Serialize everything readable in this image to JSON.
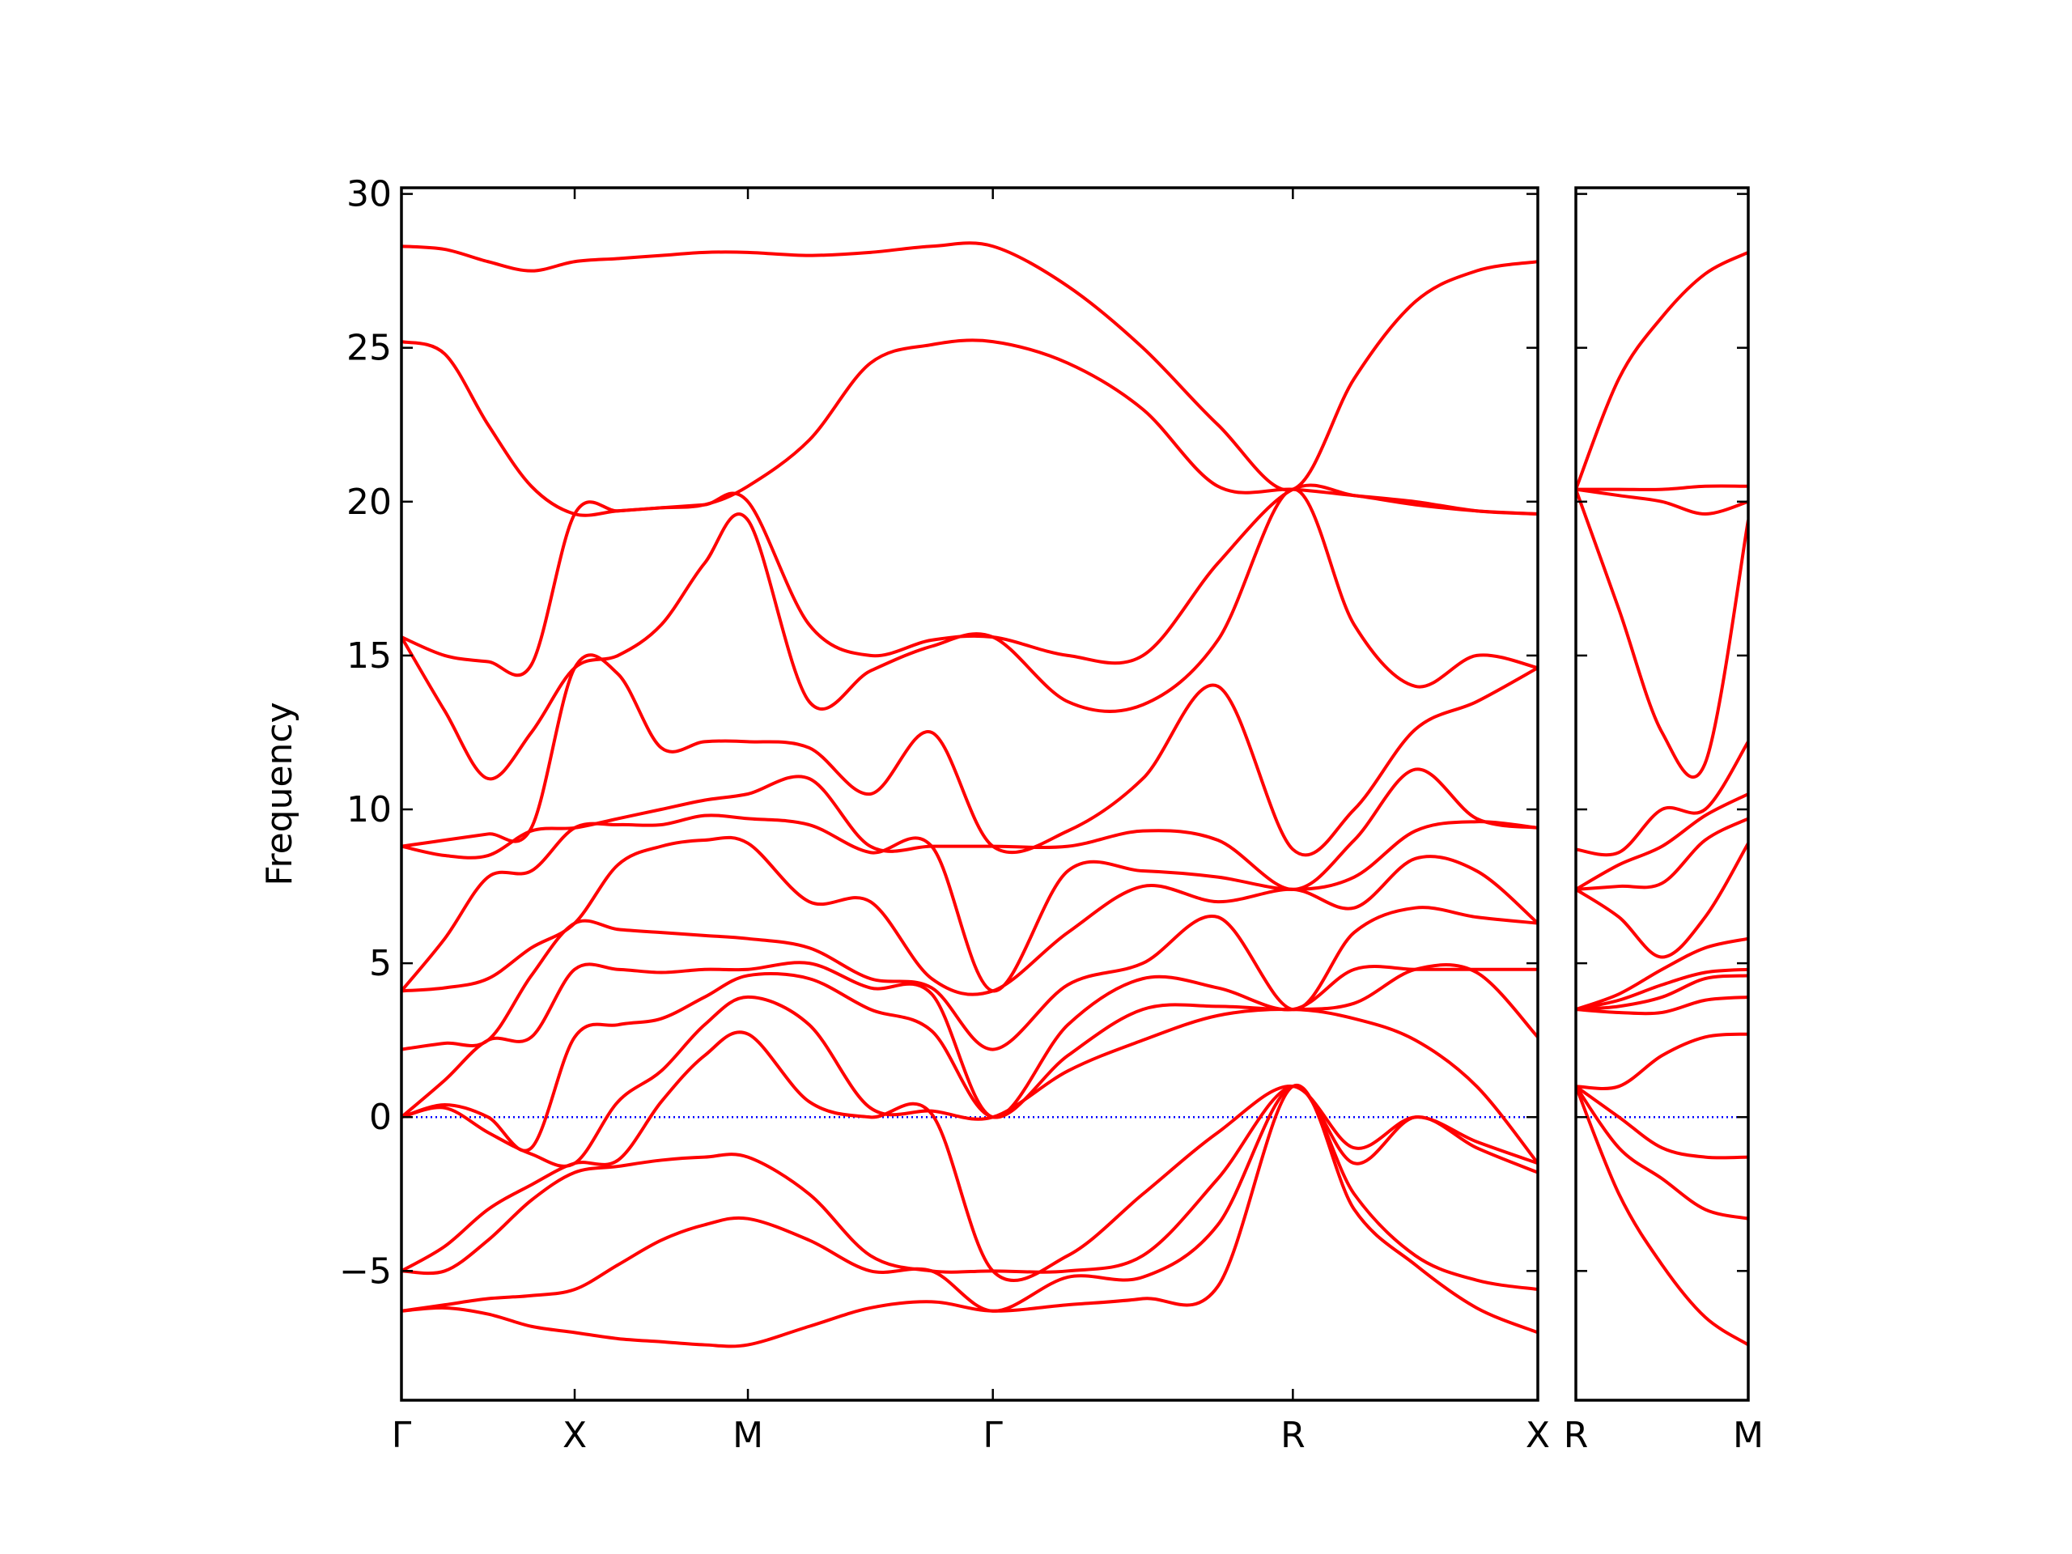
{
  "chart_data": [
    {
      "type": "line",
      "ylabel": "Frequency",
      "color": "#ff0000",
      "zero_line_color": "#0000ff",
      "tick_direction": "in",
      "x": [
        0,
        0.25,
        0.5,
        0.75,
        1,
        1.25,
        1.5,
        1.75,
        2,
        2.354,
        2.707,
        3.061,
        3.414,
        3.847,
        4.28,
        4.713,
        5.146,
        5.5,
        5.853,
        6.207,
        6.56
      ],
      "xlim": [
        0,
        6.56
      ],
      "xticks": [
        {
          "value": 0,
          "label": "Γ"
        },
        {
          "value": 1,
          "label": "X"
        },
        {
          "value": 2,
          "label": "M"
        },
        {
          "value": 3.414,
          "label": "Γ"
        },
        {
          "value": 5.146,
          "label": "R"
        },
        {
          "value": 6.56,
          "label": "X"
        }
      ],
      "ylim": [
        -9.2,
        30.2
      ],
      "yticks": [
        {
          "value": -5,
          "label": "−5"
        },
        0,
        5,
        10,
        15,
        20,
        25,
        30
      ],
      "ytick_labels": true,
      "series": [
        {
          "values": [
            -6.3,
            -6.2,
            -6.4,
            -6.8,
            -7.0,
            -7.2,
            -7.3,
            -7.4,
            -7.4,
            -6.8,
            -6.2,
            -6.0,
            -6.3,
            -6.1,
            -5.9,
            -5.5,
            1.0,
            -3.0,
            -4.8,
            -6.2,
            -7.0
          ]
        },
        {
          "values": [
            -6.3,
            -6.1,
            -5.9,
            -5.8,
            -5.6,
            -4.8,
            -4.0,
            -3.5,
            -3.3,
            -4.0,
            -5.0,
            -5.0,
            -6.3,
            -5.2,
            -5.2,
            -3.5,
            1.0,
            -2.5,
            -4.5,
            -5.3,
            -5.6
          ]
        },
        {
          "values": [
            -5.0,
            -5.0,
            -4.0,
            -2.7,
            -1.8,
            -1.6,
            -1.4,
            -1.3,
            -1.3,
            -2.5,
            -4.5,
            -5.0,
            -5.0,
            -5.0,
            -4.5,
            -2.0,
            1.0,
            -1.5,
            0.0,
            -1.0,
            -1.8
          ]
        },
        {
          "values": [
            -5.0,
            -4.2,
            -3.0,
            -2.2,
            -1.5,
            -1.4,
            0.5,
            2.0,
            2.7,
            0.5,
            0.0,
            0.1,
            -5.0,
            -4.5,
            -2.5,
            -0.5,
            1.0,
            -1.0,
            0.0,
            -0.8,
            -1.5
          ]
        },
        {
          "values": [
            0,
            0.3,
            -0.5,
            -1.2,
            -1.5,
            0.5,
            1.5,
            3.0,
            3.9,
            3.0,
            0.3,
            0.2,
            0,
            1.5,
            2.5,
            3.3,
            3.5,
            3.2,
            2.5,
            1.0,
            -1.5
          ]
        },
        {
          "values": [
            0,
            0.4,
            0.0,
            -1.0,
            2.6,
            3.0,
            3.2,
            3.9,
            4.6,
            4.5,
            3.5,
            2.8,
            0,
            2.0,
            3.5,
            3.6,
            3.5,
            3.7,
            4.8,
            4.7,
            2.6
          ]
        },
        {
          "values": [
            0,
            1.2,
            2.5,
            2.6,
            4.8,
            4.8,
            4.7,
            4.8,
            4.8,
            5.0,
            4.2,
            4.0,
            0,
            3.0,
            4.5,
            4.2,
            3.5,
            4.8,
            4.8,
            4.8,
            4.8
          ]
        },
        {
          "values": [
            2.2,
            2.4,
            2.5,
            4.6,
            6.3,
            6.1,
            6.0,
            5.9,
            5.8,
            5.5,
            4.5,
            4.2,
            2.2,
            4.3,
            5.0,
            6.5,
            3.5,
            6.0,
            6.8,
            6.5,
            6.3
          ]
        },
        {
          "values": [
            4.1,
            4.2,
            4.5,
            5.5,
            6.3,
            8.2,
            8.8,
            9.0,
            8.9,
            7.0,
            7.0,
            4.5,
            4.1,
            6.0,
            7.5,
            7.0,
            7.4,
            6.8,
            8.4,
            8.0,
            6.3
          ]
        },
        {
          "values": [
            4.1,
            5.8,
            7.8,
            8.0,
            9.4,
            9.5,
            9.5,
            9.8,
            9.7,
            9.5,
            8.6,
            8.8,
            4.1,
            8.0,
            8.0,
            7.8,
            7.4,
            7.8,
            9.3,
            9.6,
            9.4
          ]
        },
        {
          "values": [
            8.8,
            8.5,
            8.5,
            9.3,
            9.4,
            9.7,
            10.0,
            10.3,
            10.5,
            11.0,
            8.8,
            8.8,
            8.8,
            8.8,
            9.3,
            9.0,
            7.4,
            9.0,
            11.3,
            9.7,
            9.4
          ]
        },
        {
          "values": [
            8.8,
            9.0,
            9.2,
            9.4,
            14.6,
            14.4,
            12.0,
            12.2,
            12.2,
            12.0,
            10.5,
            12.5,
            8.8,
            9.3,
            11.0,
            14.0,
            8.7,
            10.0,
            12.6,
            13.5,
            14.6
          ]
        },
        {
          "values": [
            15.6,
            13.2,
            11.0,
            12.5,
            14.6,
            15.0,
            16.0,
            18.0,
            19.4,
            13.5,
            14.5,
            15.3,
            15.6,
            13.5,
            13.4,
            15.5,
            20.4,
            16.0,
            14.0,
            15.0,
            14.6
          ]
        },
        {
          "values": [
            15.6,
            15.0,
            14.8,
            14.7,
            19.6,
            19.7,
            19.8,
            19.9,
            20.0,
            16.0,
            15.0,
            15.5,
            15.6,
            15.0,
            15.0,
            18.0,
            20.4,
            20.2,
            19.9,
            19.7,
            19.6
          ]
        },
        {
          "values": [
            25.2,
            24.8,
            22.5,
            20.5,
            19.6,
            19.7,
            19.8,
            19.9,
            20.5,
            22.0,
            24.5,
            25.1,
            25.2,
            24.5,
            23.0,
            20.5,
            20.4,
            20.2,
            20.0,
            19.7,
            19.6
          ]
        },
        {
          "values": [
            28.3,
            28.2,
            27.8,
            27.5,
            27.8,
            27.9,
            28.0,
            28.1,
            28.1,
            28.0,
            28.1,
            28.3,
            28.3,
            27.0,
            25.0,
            22.5,
            20.4,
            24.0,
            26.5,
            27.5,
            27.8
          ]
        }
      ]
    },
    {
      "type": "line",
      "color": "#ff0000",
      "zero_line_color": "#0000ff",
      "tick_direction": "in",
      "x": [
        0,
        0.25,
        0.5,
        0.75,
        1
      ],
      "xlim": [
        0,
        1
      ],
      "xticks": [
        {
          "value": 0,
          "label": "R"
        },
        {
          "value": 1,
          "label": "M"
        }
      ],
      "ylim": [
        -9.2,
        30.2
      ],
      "yticks": [
        -5,
        0,
        5,
        10,
        15,
        20,
        25,
        30
      ],
      "ytick_labels": false,
      "series": [
        {
          "values": [
            1.0,
            -2.5,
            -4.8,
            -6.5,
            -7.4
          ]
        },
        {
          "values": [
            1.0,
            -1.0,
            -2.0,
            -3.0,
            -3.3
          ]
        },
        {
          "values": [
            1.0,
            0.0,
            -1.0,
            -1.3,
            -1.3
          ]
        },
        {
          "values": [
            1.0,
            1.0,
            2.0,
            2.6,
            2.7
          ]
        },
        {
          "values": [
            3.5,
            3.4,
            3.4,
            3.8,
            3.9
          ]
        },
        {
          "values": [
            3.5,
            3.6,
            3.9,
            4.5,
            4.6
          ]
        },
        {
          "values": [
            3.5,
            3.8,
            4.3,
            4.7,
            4.8
          ]
        },
        {
          "values": [
            3.5,
            4.0,
            4.8,
            5.5,
            5.8
          ]
        },
        {
          "values": [
            7.4,
            6.5,
            5.2,
            6.5,
            8.9
          ]
        },
        {
          "values": [
            7.4,
            7.5,
            7.6,
            9.0,
            9.7
          ]
        },
        {
          "values": [
            7.4,
            8.2,
            8.8,
            9.8,
            10.5
          ]
        },
        {
          "values": [
            8.7,
            8.6,
            10.0,
            10.0,
            12.2
          ]
        },
        {
          "values": [
            20.4,
            16.5,
            12.5,
            11.5,
            19.4
          ]
        },
        {
          "values": [
            20.4,
            20.2,
            20.0,
            19.6,
            20.0
          ]
        },
        {
          "values": [
            20.4,
            20.4,
            20.4,
            20.5,
            20.5
          ]
        },
        {
          "values": [
            20.4,
            24.0,
            26.0,
            27.4,
            28.1
          ]
        }
      ]
    }
  ]
}
